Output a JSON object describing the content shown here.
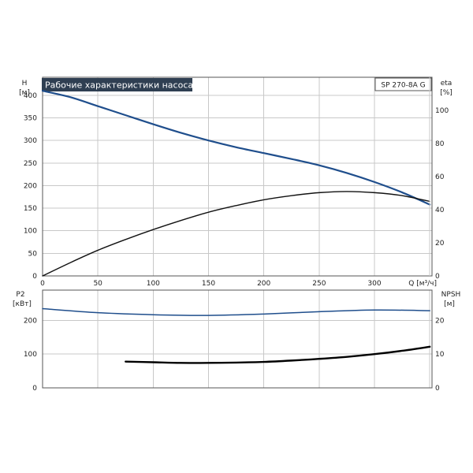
{
  "chart_data": [
    {
      "type": "line",
      "title": "Рабочие характеристики насоса",
      "model": "SP 270-8A G",
      "y_left_label": [
        "H",
        "[м]"
      ],
      "y_right_label": [
        "eta",
        "[%]"
      ],
      "x_label": "Q [м³/ч]",
      "xlim": [
        0,
        352
      ],
      "ylim_left": [
        0,
        440
      ],
      "ylim_right": [
        0,
        120
      ],
      "x_ticks": [
        0,
        50,
        100,
        150,
        200,
        250,
        300
      ],
      "y_left_ticks": [
        0,
        50,
        100,
        150,
        200,
        250,
        300,
        350,
        400
      ],
      "y_right_ticks": [
        0,
        20,
        40,
        60,
        80,
        100
      ],
      "grid": true,
      "series": [
        {
          "name": "H",
          "axis": "left",
          "color": "#1f4e8c",
          "x": [
            0,
            25,
            50,
            75,
            100,
            125,
            150,
            175,
            200,
            225,
            250,
            275,
            300,
            325,
            350
          ],
          "y": [
            410,
            396,
            376,
            356,
            336,
            317,
            300,
            285,
            272,
            259,
            245,
            228,
            208,
            185,
            158
          ]
        },
        {
          "name": "eta",
          "axis": "right",
          "color": "#111111",
          "x": [
            0,
            25,
            50,
            75,
            100,
            125,
            150,
            175,
            200,
            225,
            250,
            275,
            300,
            325,
            350
          ],
          "y": [
            0,
            8,
            15.5,
            22,
            28,
            33.5,
            38.5,
            42.5,
            46,
            48.5,
            50.3,
            51,
            50.3,
            48.5,
            45
          ]
        }
      ]
    },
    {
      "type": "line",
      "y_left_label": [
        "P2",
        "[кВт]"
      ],
      "y_right_label": [
        "NPSH",
        "[м]"
      ],
      "xlim": [
        0,
        352
      ],
      "ylim_left": [
        0,
        290
      ],
      "ylim_right": [
        0,
        29
      ],
      "y_left_ticks": [
        0,
        100,
        200
      ],
      "y_right_ticks": [
        0,
        10,
        20
      ],
      "grid": true,
      "series": [
        {
          "name": "P2",
          "axis": "left",
          "color": "#1f4e8c",
          "x": [
            0,
            50,
            100,
            150,
            200,
            250,
            300,
            350
          ],
          "y": [
            235,
            223,
            217,
            215,
            219,
            226,
            231,
            229
          ]
        },
        {
          "name": "NPSH",
          "axis": "right",
          "color": "#000000",
          "x": [
            75,
            100,
            125,
            150,
            175,
            200,
            225,
            250,
            275,
            300,
            325,
            350
          ],
          "y": [
            7.8,
            7.6,
            7.4,
            7.4,
            7.5,
            7.7,
            8.1,
            8.6,
            9.2,
            10,
            11,
            12.2
          ]
        }
      ]
    }
  ]
}
